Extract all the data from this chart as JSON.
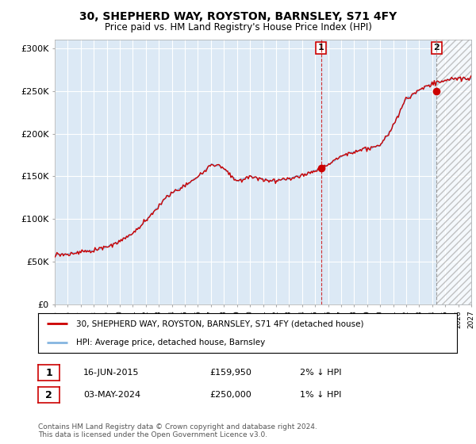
{
  "title": "30, SHEPHERD WAY, ROYSTON, BARNSLEY, S71 4FY",
  "subtitle": "Price paid vs. HM Land Registry's House Price Index (HPI)",
  "ylim": [
    0,
    310000
  ],
  "yticks": [
    0,
    50000,
    100000,
    150000,
    200000,
    250000,
    300000
  ],
  "ytick_labels": [
    "£0",
    "£50K",
    "£100K",
    "£150K",
    "£200K",
    "£250K",
    "£300K"
  ],
  "bg_color": "#dce9f5",
  "hpi_color": "#85b5e0",
  "price_color": "#cc0000",
  "marker1_x": 2015.46,
  "marker1_y": 159950,
  "marker2_x": 2024.34,
  "marker2_y": 250000,
  "legend_label1": "30, SHEPHERD WAY, ROYSTON, BARNSLEY, S71 4FY (detached house)",
  "legend_label2": "HPI: Average price, detached house, Barnsley",
  "table_row1": [
    "1",
    "16-JUN-2015",
    "£159,950",
    "2% ↓ HPI"
  ],
  "table_row2": [
    "2",
    "03-MAY-2024",
    "£250,000",
    "1% ↓ HPI"
  ],
  "footnote": "Contains HM Land Registry data © Crown copyright and database right 2024.\nThis data is licensed under the Open Government Licence v3.0.",
  "vline1_x": 2015.46,
  "vline2_x": 2024.34,
  "xmin": 1995.0,
  "xmax": 2027.0,
  "hpi_anchors_years": [
    1995,
    1996,
    1997,
    1998,
    1999,
    2000,
    2001,
    2002,
    2003,
    2004,
    2005,
    2006,
    2007,
    2008,
    2009,
    2010,
    2011,
    2012,
    2013,
    2014,
    2015,
    2016,
    2017,
    2018,
    2019,
    2020,
    2021,
    2022,
    2023,
    2024,
    2025,
    2026,
    2027
  ],
  "hpi_anchors_prices": [
    58000,
    59000,
    61000,
    63500,
    67000,
    73000,
    82000,
    97000,
    115000,
    130000,
    138000,
    148000,
    163000,
    158000,
    143000,
    148000,
    145000,
    143000,
    146000,
    150000,
    156000,
    163000,
    172000,
    178000,
    182000,
    185000,
    208000,
    240000,
    250000,
    258000,
    262000,
    265000,
    265000
  ]
}
